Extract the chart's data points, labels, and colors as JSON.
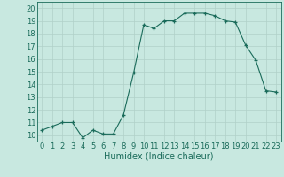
{
  "x": [
    0,
    1,
    2,
    3,
    4,
    5,
    6,
    7,
    8,
    9,
    10,
    11,
    12,
    13,
    14,
    15,
    16,
    17,
    18,
    19,
    20,
    21,
    22,
    23
  ],
  "y": [
    10.4,
    10.7,
    11.0,
    11.0,
    9.8,
    10.4,
    10.1,
    10.1,
    11.6,
    14.9,
    18.7,
    18.4,
    19.0,
    19.0,
    19.6,
    19.6,
    19.6,
    19.4,
    19.0,
    18.9,
    17.1,
    15.9,
    13.5,
    13.4
  ],
  "line_color": "#1a6b5a",
  "marker": "+",
  "marker_size": 3,
  "background_color": "#c8e8e0",
  "grid_color": "#b0d0c8",
  "xlabel": "Humidex (Indice chaleur)",
  "xlim": [
    -0.5,
    23.5
  ],
  "ylim": [
    9.5,
    20.5
  ],
  "yticks": [
    10,
    11,
    12,
    13,
    14,
    15,
    16,
    17,
    18,
    19,
    20
  ],
  "xticks": [
    0,
    1,
    2,
    3,
    4,
    5,
    6,
    7,
    8,
    9,
    10,
    11,
    12,
    13,
    14,
    15,
    16,
    17,
    18,
    19,
    20,
    21,
    22,
    23
  ],
  "font_size": 6,
  "xlabel_fontsize": 7
}
